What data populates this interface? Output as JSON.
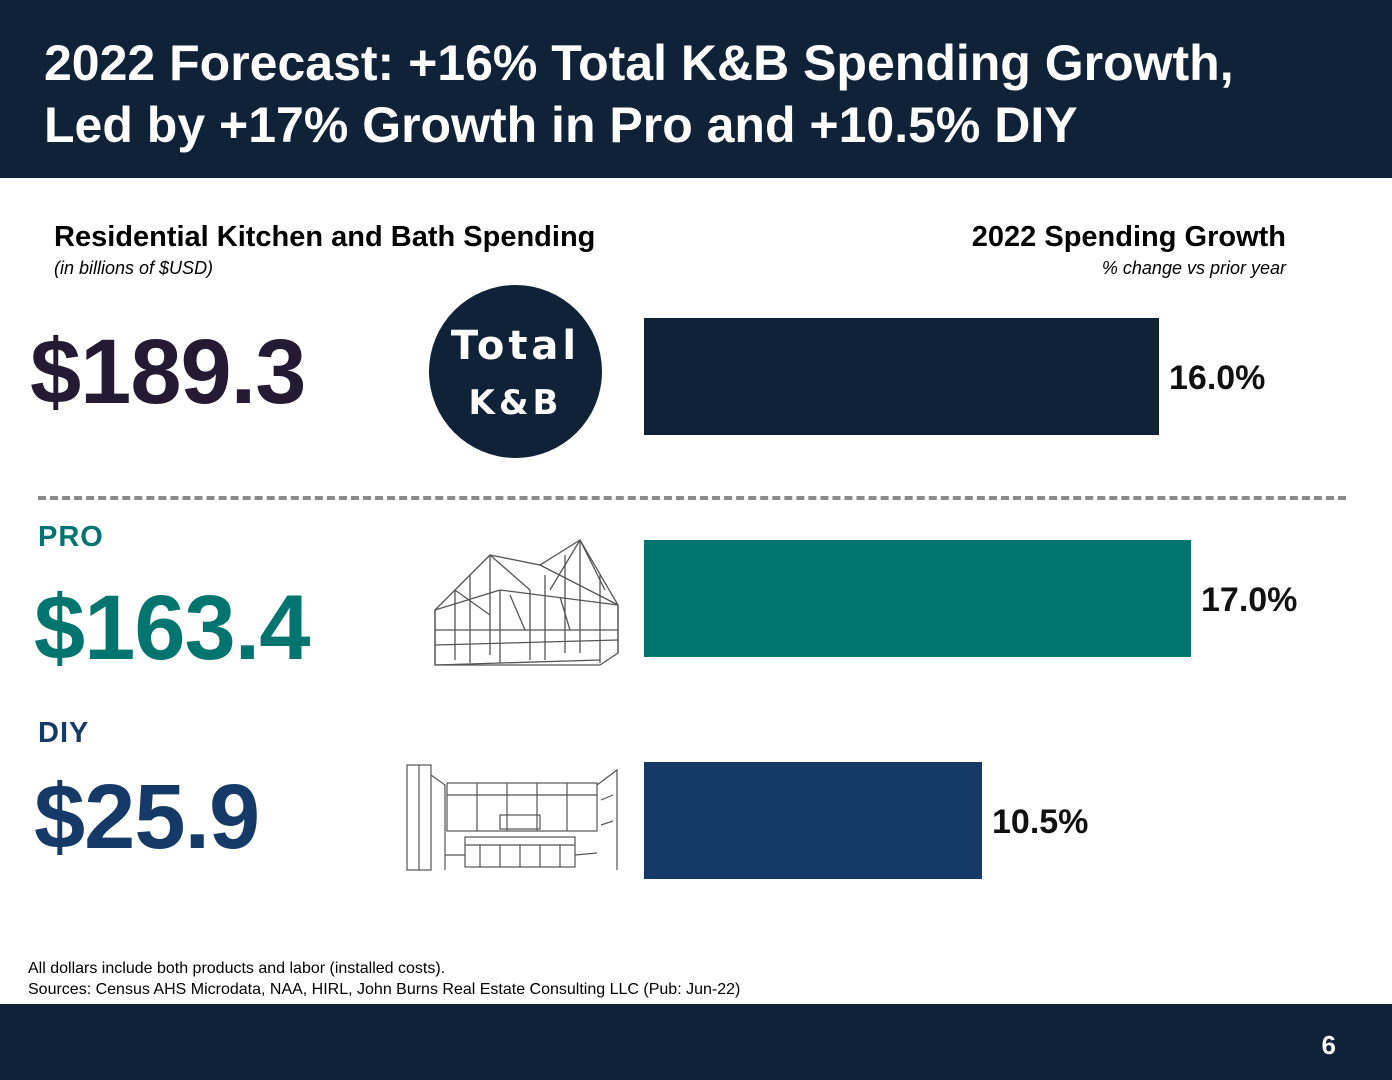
{
  "header": {
    "title_line1": "2022 Forecast: +16% Total K&B Spending Growth,",
    "title_line2": "Led by +17% Growth in Pro and +10.5% DIY"
  },
  "left_section": {
    "title": "Residential Kitchen and Bath Spending",
    "subtitle": "(in billions of $USD)"
  },
  "right_section": {
    "title": "2022 Spending Growth",
    "subtitle": "% change vs prior year"
  },
  "segments": {
    "total": {
      "value": "$189.3",
      "badge_line1": "Total",
      "badge_line2": "K&B",
      "color": "#0f2238"
    },
    "pro": {
      "label": "PRO",
      "value": "$163.4",
      "color": "#00756f",
      "icon": "house-frame-sketch-icon"
    },
    "diy": {
      "label": "DIY",
      "value": "$25.9",
      "color": "#163a68",
      "icon": "kitchen-sketch-icon"
    }
  },
  "chart_data": {
    "type": "bar",
    "orientation": "horizontal",
    "title": "2022 Spending Growth",
    "subtitle": "% change vs prior year",
    "categories": [
      "Total K&B",
      "PRO",
      "DIY"
    ],
    "values": [
      16.0,
      17.0,
      10.5
    ],
    "value_labels": [
      "16.0%",
      "17.0%",
      "10.5%"
    ],
    "colors": [
      "#0f2238",
      "#00756f",
      "#163a68"
    ],
    "xlim": [
      0,
      17.0
    ],
    "grid": false,
    "legend": "none"
  },
  "footnote": {
    "line1": "All dollars include both products and labor (installed costs).",
    "line2": "Sources: Census AHS Microdata, NAA, HIRL, John Burns Real Estate Consulting LLC (Pub: Jun-22)"
  },
  "footer": {
    "page_number": "6"
  }
}
